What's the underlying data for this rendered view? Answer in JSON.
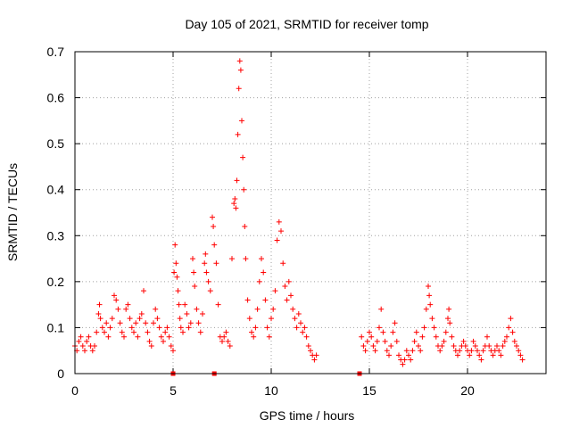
{
  "chart_data": {
    "type": "scatter",
    "title": "Day 105 of 2021, SRMTID for receiver tomp",
    "xlabel": "GPS time / hours",
    "ylabel": "SRMTID / TECUs",
    "xlim": [
      0,
      24
    ],
    "ylim": [
      0,
      0.7
    ],
    "x_ticks": [
      0,
      5,
      10,
      15,
      20
    ],
    "y_ticks": [
      0,
      0.1,
      0.2,
      0.3,
      0.4,
      0.5,
      0.6,
      0.7
    ],
    "x_tick_labels": [
      "0",
      "5",
      "10",
      "15",
      "20"
    ],
    "y_tick_labels": [
      "0",
      "0.1",
      "0.2",
      "0.3",
      "0.4",
      "0.5",
      "0.6",
      "0.7"
    ],
    "grid": true,
    "marker": "plus",
    "color": "#ff0000",
    "series": [
      {
        "name": "SRMTID",
        "points": [
          [
            0.0,
            0.06
          ],
          [
            0.1,
            0.05
          ],
          [
            0.2,
            0.07
          ],
          [
            0.3,
            0.08
          ],
          [
            0.4,
            0.06
          ],
          [
            0.5,
            0.05
          ],
          [
            0.6,
            0.07
          ],
          [
            0.7,
            0.08
          ],
          [
            0.8,
            0.06
          ],
          [
            0.9,
            0.05
          ],
          [
            1.0,
            0.06
          ],
          [
            1.1,
            0.09
          ],
          [
            1.2,
            0.13
          ],
          [
            1.25,
            0.15
          ],
          [
            1.3,
            0.12
          ],
          [
            1.4,
            0.1
          ],
          [
            1.5,
            0.09
          ],
          [
            1.6,
            0.11
          ],
          [
            1.7,
            0.08
          ],
          [
            1.8,
            0.1
          ],
          [
            1.9,
            0.12
          ],
          [
            2.0,
            0.17
          ],
          [
            2.1,
            0.16
          ],
          [
            2.2,
            0.14
          ],
          [
            2.3,
            0.11
          ],
          [
            2.4,
            0.09
          ],
          [
            2.5,
            0.08
          ],
          [
            2.6,
            0.14
          ],
          [
            2.7,
            0.15
          ],
          [
            2.8,
            0.12
          ],
          [
            2.9,
            0.1
          ],
          [
            3.0,
            0.09
          ],
          [
            3.1,
            0.11
          ],
          [
            3.2,
            0.08
          ],
          [
            3.3,
            0.12
          ],
          [
            3.4,
            0.13
          ],
          [
            3.5,
            0.18
          ],
          [
            3.6,
            0.11
          ],
          [
            3.7,
            0.09
          ],
          [
            3.8,
            0.07
          ],
          [
            3.9,
            0.06
          ],
          [
            4.0,
            0.11
          ],
          [
            4.1,
            0.14
          ],
          [
            4.2,
            0.12
          ],
          [
            4.3,
            0.1
          ],
          [
            4.4,
            0.08
          ],
          [
            4.5,
            0.07
          ],
          [
            4.6,
            0.09
          ],
          [
            4.7,
            0.1
          ],
          [
            4.8,
            0.08
          ],
          [
            4.9,
            0.06
          ],
          [
            5.0,
            0.05
          ],
          [
            5.05,
            0.22
          ],
          [
            5.1,
            0.28
          ],
          [
            5.15,
            0.24
          ],
          [
            5.2,
            0.21
          ],
          [
            5.25,
            0.18
          ],
          [
            5.3,
            0.15
          ],
          [
            5.35,
            0.12
          ],
          [
            5.4,
            0.1
          ],
          [
            5.5,
            0.09
          ],
          [
            5.6,
            0.15
          ],
          [
            5.7,
            0.13
          ],
          [
            5.8,
            0.1
          ],
          [
            5.9,
            0.11
          ],
          [
            6.0,
            0.25
          ],
          [
            6.05,
            0.22
          ],
          [
            6.1,
            0.19
          ],
          [
            6.2,
            0.14
          ],
          [
            6.3,
            0.11
          ],
          [
            6.4,
            0.09
          ],
          [
            6.5,
            0.13
          ],
          [
            6.6,
            0.24
          ],
          [
            6.65,
            0.26
          ],
          [
            6.7,
            0.22
          ],
          [
            6.8,
            0.2
          ],
          [
            6.9,
            0.18
          ],
          [
            7.0,
            0.34
          ],
          [
            7.05,
            0.32
          ],
          [
            7.1,
            0.28
          ],
          [
            7.2,
            0.24
          ],
          [
            7.3,
            0.15
          ],
          [
            7.4,
            0.08
          ],
          [
            7.5,
            0.07
          ],
          [
            7.6,
            0.08
          ],
          [
            7.7,
            0.09
          ],
          [
            7.8,
            0.07
          ],
          [
            7.9,
            0.06
          ],
          [
            8.0,
            0.25
          ],
          [
            8.1,
            0.37
          ],
          [
            8.15,
            0.38
          ],
          [
            8.2,
            0.36
          ],
          [
            8.25,
            0.42
          ],
          [
            8.3,
            0.52
          ],
          [
            8.35,
            0.62
          ],
          [
            8.4,
            0.68
          ],
          [
            8.45,
            0.66
          ],
          [
            8.5,
            0.55
          ],
          [
            8.55,
            0.47
          ],
          [
            8.6,
            0.4
          ],
          [
            8.65,
            0.32
          ],
          [
            8.7,
            0.25
          ],
          [
            8.8,
            0.16
          ],
          [
            8.9,
            0.12
          ],
          [
            9.0,
            0.09
          ],
          [
            9.1,
            0.08
          ],
          [
            9.2,
            0.1
          ],
          [
            9.3,
            0.14
          ],
          [
            9.4,
            0.2
          ],
          [
            9.5,
            0.25
          ],
          [
            9.6,
            0.22
          ],
          [
            9.7,
            0.16
          ],
          [
            9.8,
            0.1
          ],
          [
            9.9,
            0.08
          ],
          [
            10.0,
            0.12
          ],
          [
            10.1,
            0.14
          ],
          [
            10.2,
            0.18
          ],
          [
            10.3,
            0.29
          ],
          [
            10.4,
            0.33
          ],
          [
            10.5,
            0.31
          ],
          [
            10.6,
            0.24
          ],
          [
            10.7,
            0.19
          ],
          [
            10.8,
            0.16
          ],
          [
            10.9,
            0.2
          ],
          [
            11.0,
            0.17
          ],
          [
            11.1,
            0.14
          ],
          [
            11.2,
            0.12
          ],
          [
            11.3,
            0.1
          ],
          [
            11.4,
            0.13
          ],
          [
            11.5,
            0.11
          ],
          [
            11.6,
            0.09
          ],
          [
            11.7,
            0.1
          ],
          [
            11.8,
            0.08
          ],
          [
            11.9,
            0.06
          ],
          [
            12.0,
            0.05
          ],
          [
            12.1,
            0.04
          ],
          [
            12.2,
            0.03
          ],
          [
            12.3,
            0.04
          ],
          [
            14.6,
            0.08
          ],
          [
            14.7,
            0.06
          ],
          [
            14.8,
            0.05
          ],
          [
            14.9,
            0.07
          ],
          [
            15.0,
            0.09
          ],
          [
            15.1,
            0.08
          ],
          [
            15.2,
            0.06
          ],
          [
            15.3,
            0.05
          ],
          [
            15.4,
            0.07
          ],
          [
            15.5,
            0.1
          ],
          [
            15.6,
            0.14
          ],
          [
            15.7,
            0.09
          ],
          [
            15.8,
            0.07
          ],
          [
            15.9,
            0.05
          ],
          [
            16.0,
            0.04
          ],
          [
            16.1,
            0.06
          ],
          [
            16.2,
            0.09
          ],
          [
            16.3,
            0.11
          ],
          [
            16.4,
            0.07
          ],
          [
            16.5,
            0.04
          ],
          [
            16.6,
            0.03
          ],
          [
            16.7,
            0.02
          ],
          [
            16.8,
            0.03
          ],
          [
            16.9,
            0.05
          ],
          [
            17.0,
            0.04
          ],
          [
            17.1,
            0.03
          ],
          [
            17.2,
            0.05
          ],
          [
            17.3,
            0.07
          ],
          [
            17.4,
            0.09
          ],
          [
            17.5,
            0.06
          ],
          [
            17.6,
            0.05
          ],
          [
            17.7,
            0.08
          ],
          [
            17.8,
            0.1
          ],
          [
            17.9,
            0.14
          ],
          [
            18.0,
            0.19
          ],
          [
            18.05,
            0.17
          ],
          [
            18.1,
            0.15
          ],
          [
            18.2,
            0.12
          ],
          [
            18.3,
            0.1
          ],
          [
            18.4,
            0.08
          ],
          [
            18.5,
            0.06
          ],
          [
            18.6,
            0.05
          ],
          [
            18.7,
            0.06
          ],
          [
            18.8,
            0.07
          ],
          [
            18.9,
            0.09
          ],
          [
            19.0,
            0.12
          ],
          [
            19.05,
            0.14
          ],
          [
            19.1,
            0.11
          ],
          [
            19.2,
            0.08
          ],
          [
            19.3,
            0.06
          ],
          [
            19.4,
            0.05
          ],
          [
            19.5,
            0.04
          ],
          [
            19.6,
            0.05
          ],
          [
            19.7,
            0.06
          ],
          [
            19.8,
            0.07
          ],
          [
            19.9,
            0.06
          ],
          [
            20.0,
            0.05
          ],
          [
            20.1,
            0.04
          ],
          [
            20.2,
            0.05
          ],
          [
            20.3,
            0.07
          ],
          [
            20.4,
            0.06
          ],
          [
            20.5,
            0.05
          ],
          [
            20.6,
            0.04
          ],
          [
            20.7,
            0.03
          ],
          [
            20.8,
            0.05
          ],
          [
            20.9,
            0.06
          ],
          [
            21.0,
            0.08
          ],
          [
            21.1,
            0.06
          ],
          [
            21.2,
            0.05
          ],
          [
            21.3,
            0.04
          ],
          [
            21.4,
            0.05
          ],
          [
            21.5,
            0.06
          ],
          [
            21.6,
            0.05
          ],
          [
            21.7,
            0.04
          ],
          [
            21.8,
            0.06
          ],
          [
            21.9,
            0.07
          ],
          [
            22.0,
            0.08
          ],
          [
            22.1,
            0.1
          ],
          [
            22.2,
            0.12
          ],
          [
            22.3,
            0.09
          ],
          [
            22.4,
            0.07
          ],
          [
            22.5,
            0.06
          ],
          [
            22.6,
            0.05
          ],
          [
            22.7,
            0.04
          ],
          [
            22.8,
            0.03
          ]
        ]
      }
    ],
    "gap_markers_x": [
      5.0,
      7.1,
      14.5
    ]
  }
}
